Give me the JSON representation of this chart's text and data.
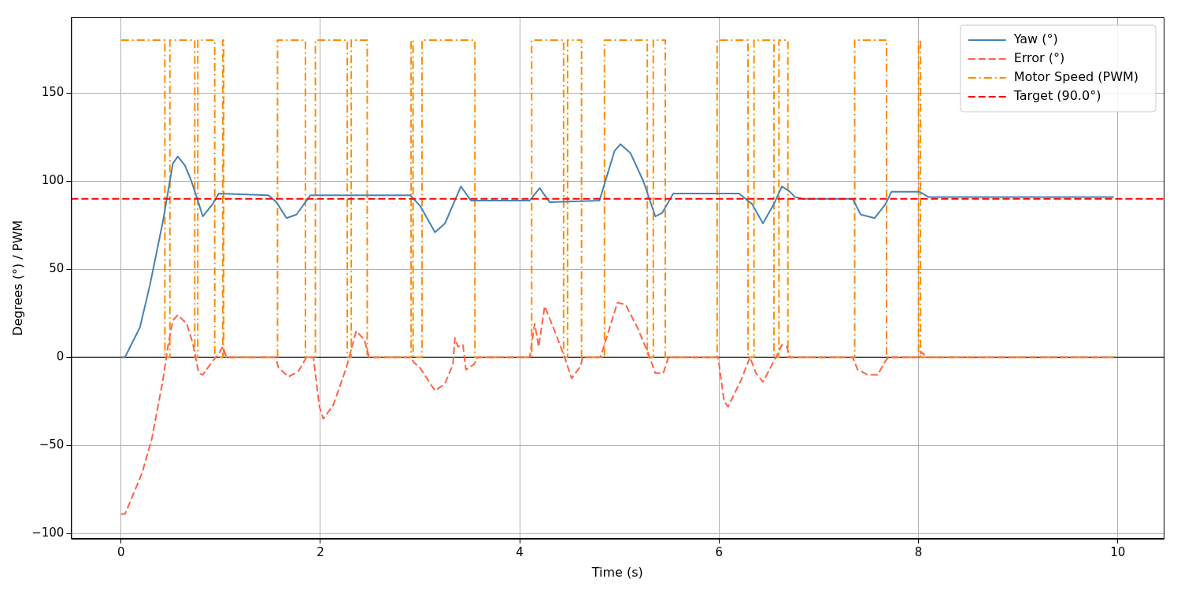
{
  "chart_data": {
    "type": "line",
    "xlabel": "Time (s)",
    "ylabel": "Degrees (°) / PWM",
    "xlim": [
      -0.5,
      10.46
    ],
    "xticks": [
      0,
      2,
      4,
      6,
      8,
      10
    ],
    "ylim": [
      -103,
      193
    ],
    "yticks": [
      {
        "value": -100,
        "label": "−100"
      },
      {
        "value": -50,
        "label": "−50"
      },
      0,
      50,
      100,
      150
    ],
    "grid": true,
    "legend": "top right",
    "marker": "none",
    "series": [
      {
        "name": "Yaw (°)",
        "color": "#4682b4",
        "line_style": "solid",
        "x": [
          0,
          0.04,
          0.11,
          0.19,
          0.29,
          0.42,
          0.52,
          0.57,
          0.64,
          0.7,
          0.77,
          0.82,
          0.92,
          0.98,
          1.48,
          1.56,
          1.66,
          1.76,
          1.9,
          2.9,
          3.0,
          3.15,
          3.25,
          3.41,
          3.51,
          4.1,
          4.2,
          4.3,
          4.8,
          4.95,
          5.01,
          5.11,
          5.24,
          5.36,
          5.43,
          5.54,
          6.2,
          6.33,
          6.44,
          6.55,
          6.63,
          6.71,
          6.76,
          6.84,
          7.34,
          7.42,
          7.49,
          7.56,
          7.67,
          7.73,
          8.01,
          8.1,
          9.96
        ],
        "values": [
          0,
          0,
          8,
          17,
          41,
          77,
          110,
          114,
          109,
          101,
          89,
          80,
          87,
          93,
          92,
          88,
          79,
          81,
          92,
          92,
          86,
          71,
          76,
          97,
          89,
          89,
          96,
          88,
          89,
          117,
          121,
          116,
          100,
          80,
          82,
          93,
          93,
          87,
          76,
          87,
          97,
          94,
          91,
          90,
          90,
          81,
          80,
          79,
          87,
          94,
          94,
          91,
          91
        ]
      },
      {
        "name": "Error (°)",
        "color": "#ff6347",
        "line_style": "dashed",
        "x": [
          0,
          0.04,
          0.21,
          0.31,
          0.42,
          0.47,
          0.52,
          0.57,
          0.66,
          0.72,
          0.78,
          0.82,
          0.92,
          0.97,
          1.02,
          1.06,
          1.55,
          1.58,
          1.68,
          1.78,
          1.86,
          1.93,
          1.99,
          2.03,
          2.13,
          2.26,
          2.36,
          2.44,
          2.49,
          2.9,
          2.94,
          3.0,
          3.15,
          3.25,
          3.33,
          3.35,
          3.38,
          3.43,
          3.46,
          3.54,
          3.58,
          4.1,
          4.15,
          4.19,
          4.25,
          4.35,
          4.45,
          4.52,
          4.61,
          4.63,
          4.81,
          4.98,
          5.06,
          5.18,
          5.29,
          5.36,
          5.44,
          5.47,
          5.49,
          5.99,
          6.05,
          6.09,
          6.22,
          6.31,
          6.37,
          6.44,
          6.57,
          6.63,
          6.68,
          6.71,
          7.34,
          7.39,
          7.49,
          7.59,
          7.67,
          7.7,
          8.0,
          8.03,
          8.08,
          9.96
        ],
        "values": [
          -89,
          -89,
          -66,
          -46,
          -13,
          6,
          21,
          24,
          19,
          8,
          -9,
          -10,
          -2,
          1,
          6,
          0,
          0,
          -6,
          -11,
          -8,
          0,
          0,
          -28,
          -35,
          -27,
          -6,
          15,
          10,
          0,
          0,
          -3,
          -6,
          -19,
          -15,
          -4,
          11,
          6,
          7,
          -7,
          -4,
          0,
          0,
          19,
          6,
          29,
          15,
          0,
          -12,
          -5,
          0,
          0,
          31,
          30,
          17,
          2,
          -9,
          -9,
          -4,
          0,
          0,
          -25,
          -28,
          -13,
          0,
          -9,
          -14,
          0,
          7,
          6,
          0,
          0,
          -7,
          -10,
          -10,
          -2,
          0,
          0,
          3,
          0,
          0
        ]
      },
      {
        "name": "Motor Speed (PWM)",
        "color": "#ff8c00",
        "line_style": "dashdot",
        "type": "step",
        "x": [
          0,
          0.44,
          0.49,
          0.74,
          0.77,
          0.94,
          1.02,
          1.03,
          1.57,
          1.85,
          1.95,
          2.27,
          2.31,
          2.47,
          2.91,
          2.93,
          3.02,
          3.55,
          4.12,
          4.44,
          4.48,
          4.62,
          4.85,
          5.28,
          5.34,
          5.46,
          5.98,
          6.29,
          6.35,
          6.55,
          6.6,
          6.69,
          7.36,
          7.68,
          8.0,
          8.02,
          9.96
        ],
        "values": [
          180,
          0,
          180,
          0,
          180,
          0,
          180,
          0,
          180,
          0,
          180,
          0,
          180,
          0,
          180,
          0,
          180,
          0,
          180,
          0,
          180,
          0,
          180,
          0,
          180,
          0,
          180,
          0,
          180,
          0,
          180,
          0,
          180,
          0,
          180,
          0,
          0
        ]
      }
    ],
    "ref_lines": [
      {
        "axis": "y",
        "value": 0,
        "color": "#000000",
        "line_style": "solid"
      },
      {
        "axis": "y",
        "value": 90,
        "label": "Target (90.0°)",
        "color": "#ff0000",
        "line_style": "dashed"
      }
    ]
  }
}
